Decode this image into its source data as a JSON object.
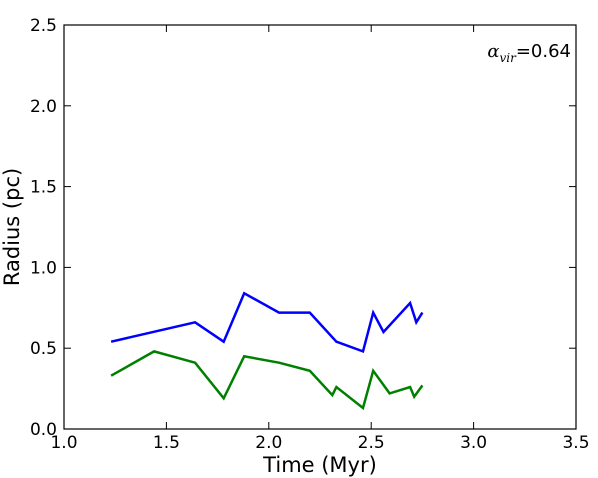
{
  "chart_data": {
    "type": "line",
    "xlabel": "Time (Myr)",
    "ylabel": "Radius (pc)",
    "xlim": [
      1.0,
      3.5
    ],
    "ylim": [
      0.0,
      2.5
    ],
    "xticks": [
      "1.0",
      "1.5",
      "2.0",
      "2.5",
      "3.0",
      "3.5"
    ],
    "yticks": [
      "0.0",
      "0.5",
      "1.0",
      "1.5",
      "2.0",
      "2.5"
    ],
    "grid": false,
    "annotation": {
      "symbol": "α",
      "subscript": "vir",
      "text": "=0.64",
      "position": "top-right"
    },
    "series": [
      {
        "color": "#0000ff",
        "x": [
          1.23,
          1.64,
          1.78,
          1.88,
          2.05,
          2.2,
          2.33,
          2.46,
          2.51,
          2.56,
          2.69,
          2.72,
          2.75
        ],
        "y": [
          0.54,
          0.66,
          0.54,
          0.84,
          0.72,
          0.72,
          0.54,
          0.48,
          0.72,
          0.6,
          0.78,
          0.66,
          0.72
        ]
      },
      {
        "color": "#008000",
        "x": [
          1.23,
          1.44,
          1.64,
          1.78,
          1.88,
          2.05,
          2.2,
          2.31,
          2.33,
          2.46,
          2.51,
          2.59,
          2.69,
          2.71,
          2.75
        ],
        "y": [
          0.33,
          0.48,
          0.41,
          0.19,
          0.45,
          0.41,
          0.36,
          0.21,
          0.26,
          0.13,
          0.36,
          0.22,
          0.26,
          0.2,
          0.27
        ]
      }
    ]
  }
}
